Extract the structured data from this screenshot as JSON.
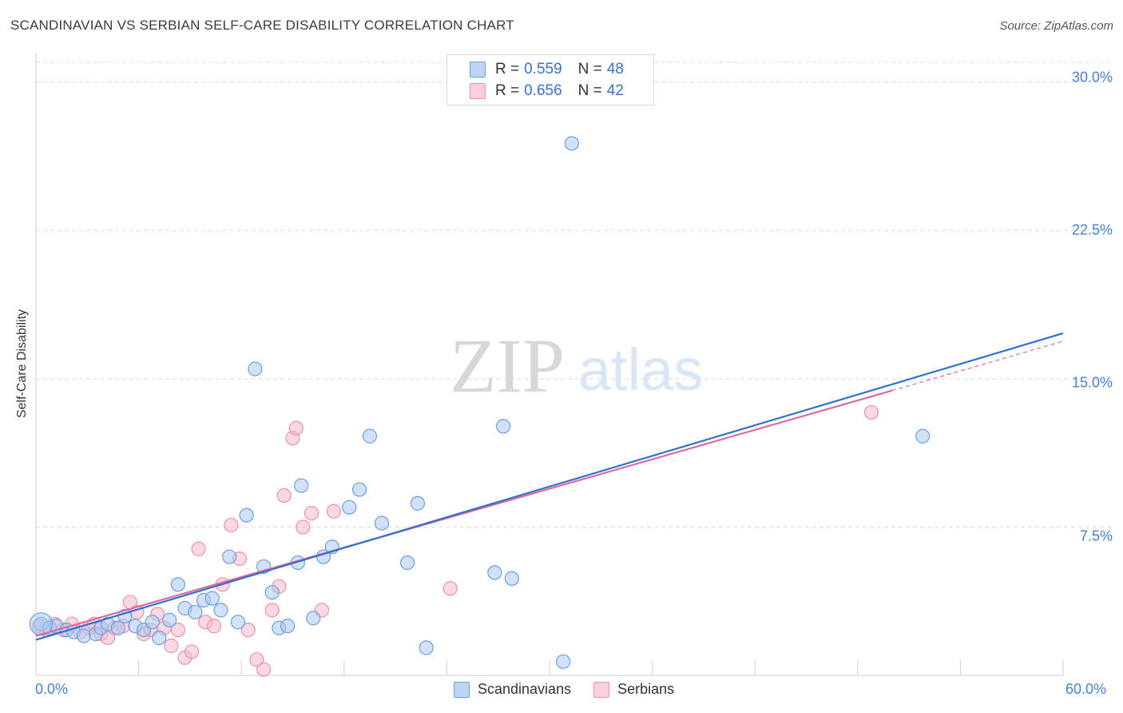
{
  "header": {
    "title": "SCANDINAVIAN VS SERBIAN SELF-CARE DISABILITY CORRELATION CHART",
    "source": "Source: ZipAtlas.com"
  },
  "watermark": {
    "zip": "ZIP",
    "atlas": "atlas"
  },
  "legend": {
    "rows": [
      {
        "r_label": "R =",
        "r_value": "0.559",
        "n_label": "N =",
        "n_value": "48"
      },
      {
        "r_label": "R =",
        "r_value": "0.656",
        "n_label": "N =",
        "n_value": "42"
      }
    ]
  },
  "bottom_legend": {
    "series1": "Scandinavians",
    "series2": "Serbians"
  },
  "colors": {
    "scand_fill": "#a9c8f2",
    "scand_stroke": "#6d9ee0",
    "scand_line": "#2f6fd0",
    "serb_fill": "#f7b9cb",
    "serb_stroke": "#e892ad",
    "serb_line": "#e0689a",
    "grid": "#dcdcdc",
    "tick_text": "#4a7fd0"
  },
  "chart_data": {
    "type": "scatter",
    "title": "SCANDINAVIAN VS SERBIAN SELF-CARE DISABILITY CORRELATION CHART",
    "xlabel": "",
    "ylabel": "Self-Care Disability",
    "xlim": [
      0,
      60
    ],
    "ylim": [
      0,
      31
    ],
    "x_tick_labels": [
      "0.0%",
      "60.0%"
    ],
    "y_ticks": [
      7.5,
      15.0,
      22.5,
      30.0
    ],
    "y_tick_labels": [
      "7.5%",
      "15.0%",
      "22.5%",
      "30.0%"
    ],
    "grid": true,
    "series": [
      {
        "name": "Scandinavians",
        "R": 0.559,
        "N": 48,
        "points": [
          [
            0.3,
            2.6
          ],
          [
            0.8,
            2.4
          ],
          [
            1.2,
            2.5
          ],
          [
            1.8,
            2.3
          ],
          [
            2.2,
            2.2
          ],
          [
            2.8,
            2.0
          ],
          [
            3.5,
            2.1
          ],
          [
            3.8,
            2.4
          ],
          [
            4.2,
            2.6
          ],
          [
            4.8,
            2.4
          ],
          [
            5.2,
            3.0
          ],
          [
            5.8,
            2.5
          ],
          [
            6.3,
            2.3
          ],
          [
            6.8,
            2.7
          ],
          [
            7.2,
            1.9
          ],
          [
            7.8,
            2.8
          ],
          [
            8.3,
            4.6
          ],
          [
            8.7,
            3.4
          ],
          [
            9.3,
            3.2
          ],
          [
            9.8,
            3.8
          ],
          [
            10.3,
            3.9
          ],
          [
            10.8,
            3.3
          ],
          [
            11.3,
            6.0
          ],
          [
            11.8,
            2.7
          ],
          [
            12.3,
            8.1
          ],
          [
            12.8,
            15.5
          ],
          [
            13.3,
            5.5
          ],
          [
            13.8,
            4.2
          ],
          [
            14.2,
            2.4
          ],
          [
            14.7,
            2.5
          ],
          [
            15.3,
            5.7
          ],
          [
            15.5,
            9.6
          ],
          [
            16.2,
            2.9
          ],
          [
            16.8,
            6.0
          ],
          [
            17.3,
            6.5
          ],
          [
            18.3,
            8.5
          ],
          [
            18.9,
            9.4
          ],
          [
            19.5,
            12.1
          ],
          [
            20.2,
            7.7
          ],
          [
            21.7,
            5.7
          ],
          [
            22.3,
            8.7
          ],
          [
            22.8,
            1.4
          ],
          [
            26.8,
            5.2
          ],
          [
            27.3,
            12.6
          ],
          [
            27.8,
            4.9
          ],
          [
            30.8,
            0.7
          ],
          [
            31.3,
            26.9
          ],
          [
            51.8,
            12.1
          ]
        ],
        "trend": {
          "x": [
            0,
            60
          ],
          "y": [
            1.8,
            17.3
          ]
        }
      },
      {
        "name": "Serbians",
        "R": 0.656,
        "N": 42,
        "points": [
          [
            0.2,
            2.5
          ],
          [
            0.6,
            2.3
          ],
          [
            1.1,
            2.6
          ],
          [
            1.6,
            2.3
          ],
          [
            2.1,
            2.6
          ],
          [
            2.6,
            2.2
          ],
          [
            3.1,
            2.4
          ],
          [
            3.4,
            2.6
          ],
          [
            3.8,
            2.1
          ],
          [
            4.2,
            1.9
          ],
          [
            4.6,
            2.4
          ],
          [
            5.1,
            2.5
          ],
          [
            5.5,
            3.7
          ],
          [
            5.9,
            3.2
          ],
          [
            6.3,
            2.1
          ],
          [
            6.7,
            2.3
          ],
          [
            7.1,
            3.1
          ],
          [
            7.5,
            2.4
          ],
          [
            7.9,
            1.5
          ],
          [
            8.3,
            2.3
          ],
          [
            8.7,
            0.9
          ],
          [
            9.1,
            1.2
          ],
          [
            9.5,
            6.4
          ],
          [
            9.9,
            2.7
          ],
          [
            10.4,
            2.5
          ],
          [
            10.9,
            4.6
          ],
          [
            11.4,
            7.6
          ],
          [
            11.9,
            5.9
          ],
          [
            12.4,
            2.3
          ],
          [
            12.9,
            0.8
          ],
          [
            13.3,
            0.3
          ],
          [
            13.8,
            3.3
          ],
          [
            14.2,
            4.5
          ],
          [
            14.5,
            9.1
          ],
          [
            15.0,
            12.0
          ],
          [
            15.2,
            12.5
          ],
          [
            15.6,
            7.5
          ],
          [
            16.1,
            8.2
          ],
          [
            16.7,
            3.3
          ],
          [
            17.4,
            8.3
          ],
          [
            24.2,
            4.4
          ],
          [
            48.8,
            13.3
          ]
        ],
        "trend": {
          "x": [
            0,
            50
          ],
          "y": [
            2.0,
            14.4
          ]
        },
        "trend_extension": {
          "x": [
            50,
            60
          ],
          "y": [
            14.4,
            16.9
          ]
        }
      }
    ]
  }
}
